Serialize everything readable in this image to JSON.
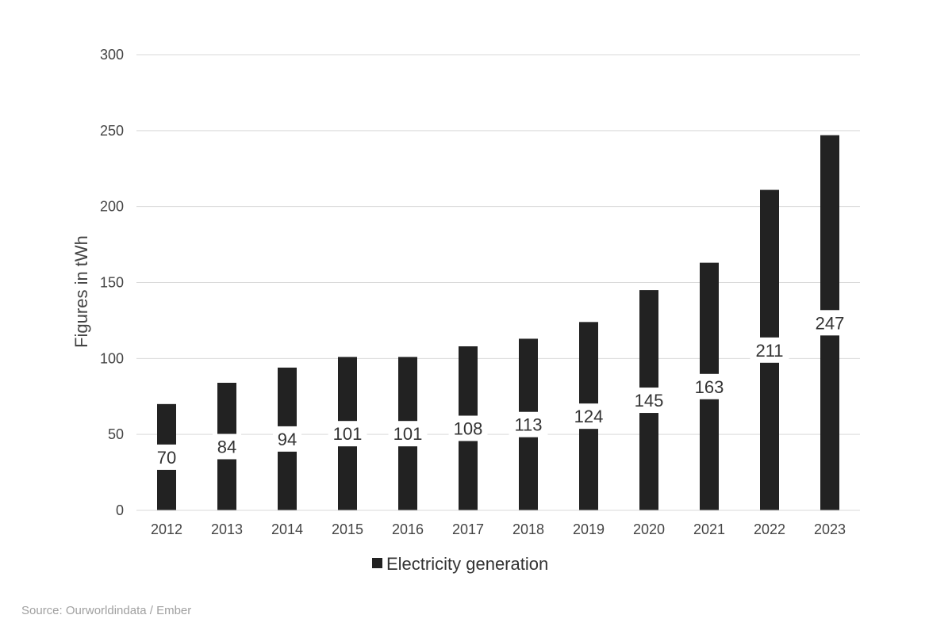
{
  "chart_data": {
    "type": "bar",
    "categories": [
      "2012",
      "2013",
      "2014",
      "2015",
      "2016",
      "2017",
      "2018",
      "2019",
      "2020",
      "2021",
      "2022",
      "2023"
    ],
    "series": [
      {
        "name": "Electricity generation",
        "values": [
          70,
          84,
          94,
          101,
          101,
          108,
          113,
          124,
          145,
          163,
          211,
          247
        ],
        "color": "#222222"
      }
    ],
    "title": "",
    "xlabel": "",
    "ylabel": "Figures in tWh",
    "ylim": [
      0,
      300
    ],
    "yticks": [
      0,
      50,
      100,
      150,
      200,
      250,
      300
    ],
    "grid": true,
    "legend": "bottom-center",
    "data_labels": true
  },
  "source": "Source: Ourworldindata / Ember"
}
